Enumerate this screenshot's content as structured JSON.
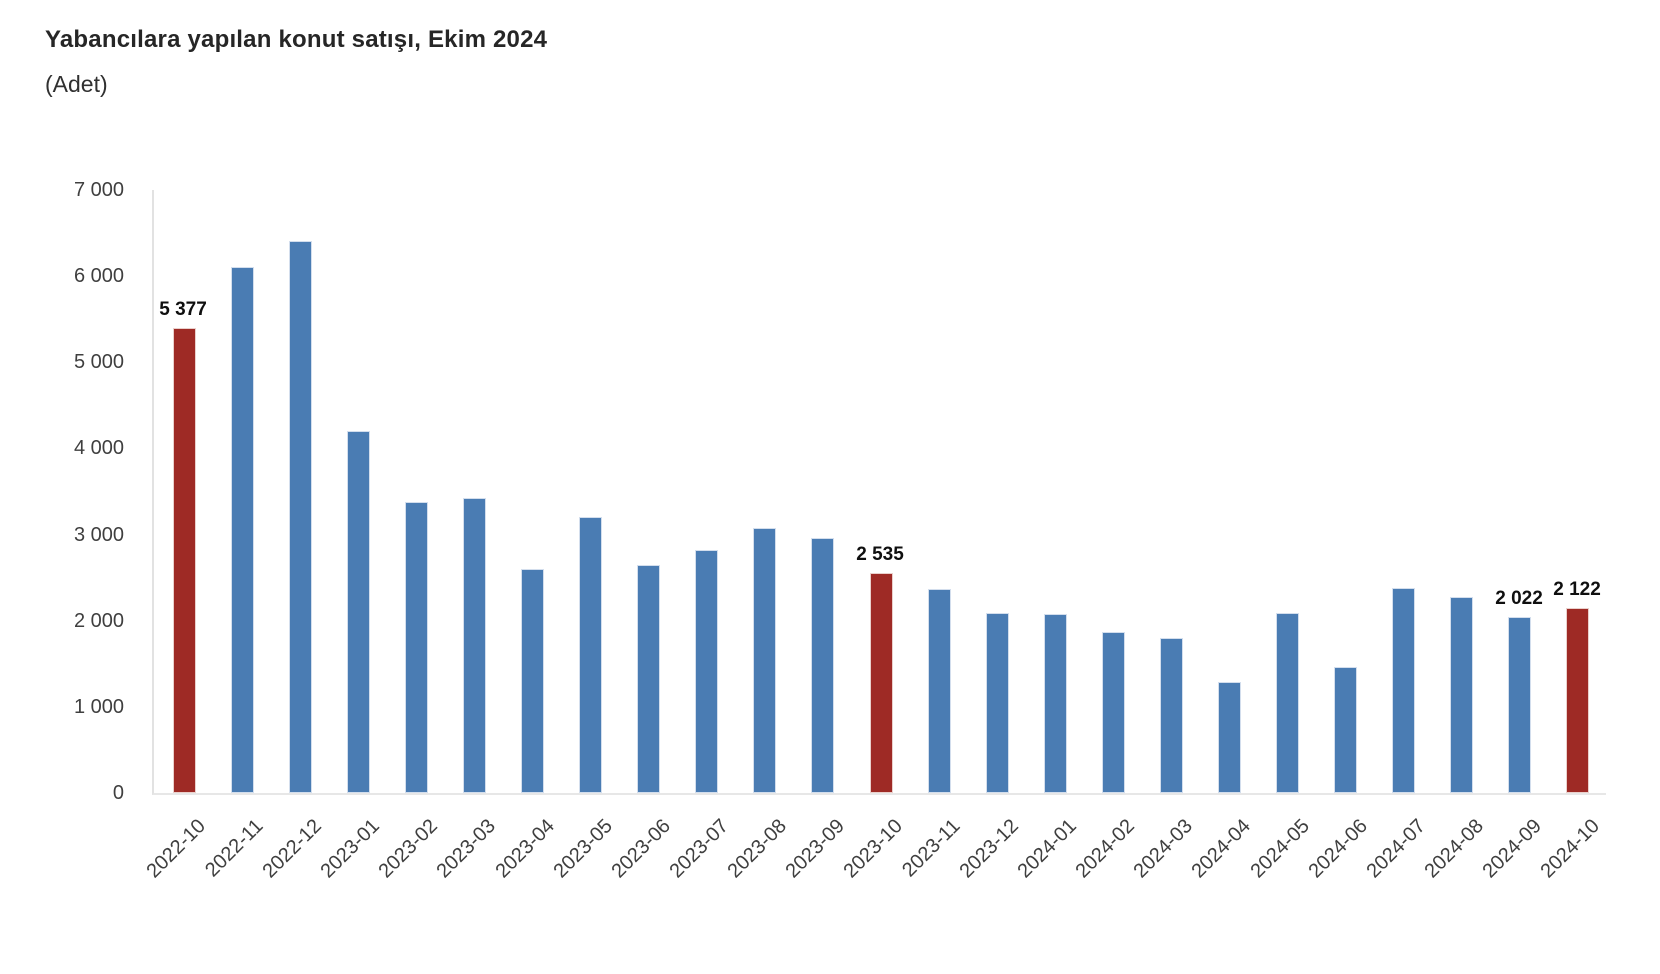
{
  "header": {
    "title": "Yabancılara yapılan konut satışı, Ekim 2024",
    "subtitle": "(Adet)"
  },
  "chart_data": {
    "type": "bar",
    "title": "Yabancılara yapılan konut satışı, Ekim 2024",
    "subtitle": "(Adet)",
    "unit": "Adet",
    "categories": [
      "2022-10",
      "2022-11",
      "2022-12",
      "2023-01",
      "2023-02",
      "2023-03",
      "2023-04",
      "2023-05",
      "2023-06",
      "2023-07",
      "2023-08",
      "2023-09",
      "2023-10",
      "2023-11",
      "2023-12",
      "2024-01",
      "2024-02",
      "2024-03",
      "2024-04",
      "2024-05",
      "2024-06",
      "2024-07",
      "2024-08",
      "2024-09",
      "2024-10"
    ],
    "values": [
      5377,
      6083,
      6386,
      4178,
      3350,
      3405,
      2574,
      3175,
      2625,
      2801,
      3058,
      2940,
      2535,
      2341,
      2064,
      2059,
      1846,
      1772,
      1263,
      2064,
      1437,
      2351,
      2256,
      2022,
      2122
    ],
    "highlighted_indices": [
      0,
      12,
      24
    ],
    "labeled_points": [
      {
        "index": 0,
        "label": "5 377"
      },
      {
        "index": 12,
        "label": "2 535"
      },
      {
        "index": 23,
        "label": "2 022"
      },
      {
        "index": 24,
        "label": "2 122"
      }
    ],
    "ylim": [
      0,
      7000
    ],
    "ytick_step": 1000,
    "ytick_labels": [
      "0",
      "1 000",
      "2 000",
      "3 000",
      "4 000",
      "5 000",
      "6 000",
      "7 000"
    ],
    "xlabel": "",
    "ylabel": "",
    "x_label_rotation": -45,
    "grid": "off",
    "legend": "none",
    "colors": {
      "bar": "#4a7cb3",
      "highlight": "#9e2a25",
      "axis_line": "#e2e2e2",
      "axis_text": "#3f3f3f",
      "value_label_text": "#0f0f0f",
      "title_text": "#262626",
      "background": "#ffffff"
    }
  }
}
